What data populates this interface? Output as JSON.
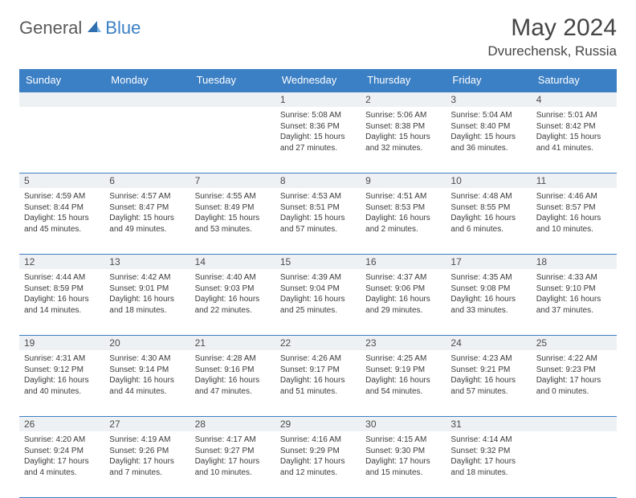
{
  "brand": {
    "part1": "General",
    "part2": "Blue"
  },
  "title": "May 2024",
  "location": "Dvurechensk, Russia",
  "colors": {
    "accent": "#3b7fc4",
    "header_bg": "#3b7fc4",
    "daynum_bg": "#eef1f3",
    "text": "#3a3a3a",
    "title_text": "#454545"
  },
  "daysOfWeek": [
    "Sunday",
    "Monday",
    "Tuesday",
    "Wednesday",
    "Thursday",
    "Friday",
    "Saturday"
  ],
  "weeks": [
    [
      null,
      null,
      null,
      {
        "n": "1",
        "sr": "5:08 AM",
        "ss": "8:36 PM",
        "dl": "15 hours and 27 minutes."
      },
      {
        "n": "2",
        "sr": "5:06 AM",
        "ss": "8:38 PM",
        "dl": "15 hours and 32 minutes."
      },
      {
        "n": "3",
        "sr": "5:04 AM",
        "ss": "8:40 PM",
        "dl": "15 hours and 36 minutes."
      },
      {
        "n": "4",
        "sr": "5:01 AM",
        "ss": "8:42 PM",
        "dl": "15 hours and 41 minutes."
      }
    ],
    [
      {
        "n": "5",
        "sr": "4:59 AM",
        "ss": "8:44 PM",
        "dl": "15 hours and 45 minutes."
      },
      {
        "n": "6",
        "sr": "4:57 AM",
        "ss": "8:47 PM",
        "dl": "15 hours and 49 minutes."
      },
      {
        "n": "7",
        "sr": "4:55 AM",
        "ss": "8:49 PM",
        "dl": "15 hours and 53 minutes."
      },
      {
        "n": "8",
        "sr": "4:53 AM",
        "ss": "8:51 PM",
        "dl": "15 hours and 57 minutes."
      },
      {
        "n": "9",
        "sr": "4:51 AM",
        "ss": "8:53 PM",
        "dl": "16 hours and 2 minutes."
      },
      {
        "n": "10",
        "sr": "4:48 AM",
        "ss": "8:55 PM",
        "dl": "16 hours and 6 minutes."
      },
      {
        "n": "11",
        "sr": "4:46 AM",
        "ss": "8:57 PM",
        "dl": "16 hours and 10 minutes."
      }
    ],
    [
      {
        "n": "12",
        "sr": "4:44 AM",
        "ss": "8:59 PM",
        "dl": "16 hours and 14 minutes."
      },
      {
        "n": "13",
        "sr": "4:42 AM",
        "ss": "9:01 PM",
        "dl": "16 hours and 18 minutes."
      },
      {
        "n": "14",
        "sr": "4:40 AM",
        "ss": "9:03 PM",
        "dl": "16 hours and 22 minutes."
      },
      {
        "n": "15",
        "sr": "4:39 AM",
        "ss": "9:04 PM",
        "dl": "16 hours and 25 minutes."
      },
      {
        "n": "16",
        "sr": "4:37 AM",
        "ss": "9:06 PM",
        "dl": "16 hours and 29 minutes."
      },
      {
        "n": "17",
        "sr": "4:35 AM",
        "ss": "9:08 PM",
        "dl": "16 hours and 33 minutes."
      },
      {
        "n": "18",
        "sr": "4:33 AM",
        "ss": "9:10 PM",
        "dl": "16 hours and 37 minutes."
      }
    ],
    [
      {
        "n": "19",
        "sr": "4:31 AM",
        "ss": "9:12 PM",
        "dl": "16 hours and 40 minutes."
      },
      {
        "n": "20",
        "sr": "4:30 AM",
        "ss": "9:14 PM",
        "dl": "16 hours and 44 minutes."
      },
      {
        "n": "21",
        "sr": "4:28 AM",
        "ss": "9:16 PM",
        "dl": "16 hours and 47 minutes."
      },
      {
        "n": "22",
        "sr": "4:26 AM",
        "ss": "9:17 PM",
        "dl": "16 hours and 51 minutes."
      },
      {
        "n": "23",
        "sr": "4:25 AM",
        "ss": "9:19 PM",
        "dl": "16 hours and 54 minutes."
      },
      {
        "n": "24",
        "sr": "4:23 AM",
        "ss": "9:21 PM",
        "dl": "16 hours and 57 minutes."
      },
      {
        "n": "25",
        "sr": "4:22 AM",
        "ss": "9:23 PM",
        "dl": "17 hours and 0 minutes."
      }
    ],
    [
      {
        "n": "26",
        "sr": "4:20 AM",
        "ss": "9:24 PM",
        "dl": "17 hours and 4 minutes."
      },
      {
        "n": "27",
        "sr": "4:19 AM",
        "ss": "9:26 PM",
        "dl": "17 hours and 7 minutes."
      },
      {
        "n": "28",
        "sr": "4:17 AM",
        "ss": "9:27 PM",
        "dl": "17 hours and 10 minutes."
      },
      {
        "n": "29",
        "sr": "4:16 AM",
        "ss": "9:29 PM",
        "dl": "17 hours and 12 minutes."
      },
      {
        "n": "30",
        "sr": "4:15 AM",
        "ss": "9:30 PM",
        "dl": "17 hours and 15 minutes."
      },
      {
        "n": "31",
        "sr": "4:14 AM",
        "ss": "9:32 PM",
        "dl": "17 hours and 18 minutes."
      },
      null
    ]
  ],
  "labels": {
    "sunrise": "Sunrise:",
    "sunset": "Sunset:",
    "daylight": "Daylight:"
  }
}
